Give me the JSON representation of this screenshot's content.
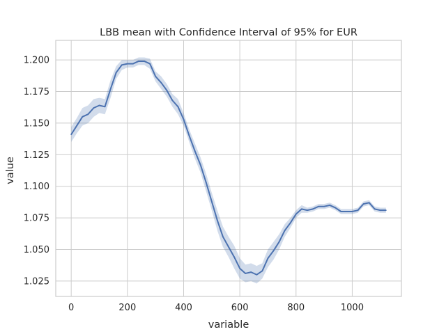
{
  "chart_data": {
    "type": "line",
    "title": "LBB mean with Confidence Interval of 95% for EUR",
    "xlabel": "variable",
    "ylabel": "value",
    "xlim": [
      -55,
      1175
    ],
    "ylim": [
      1.0128,
      1.2155
    ],
    "xticks": [
      0,
      200,
      400,
      600,
      800,
      1000
    ],
    "yticks": [
      1.025,
      1.05,
      1.075,
      1.1,
      1.125,
      1.15,
      1.175,
      1.2
    ],
    "ytick_labels": [
      "1.025",
      "1.050",
      "1.075",
      "1.100",
      "1.125",
      "1.150",
      "1.175",
      "1.200"
    ],
    "grid": true,
    "colors": {
      "line": "#4c72b0",
      "band": "#4c72b0",
      "grid": "#cccccc"
    },
    "series": [
      {
        "x": [
          0,
          20,
          40,
          60,
          80,
          100,
          120,
          140,
          160,
          180,
          200,
          220,
          240,
          260,
          280,
          300,
          320,
          340,
          360,
          380,
          400,
          420,
          440,
          460,
          480,
          500,
          520,
          540,
          560,
          580,
          600,
          620,
          640,
          660,
          680,
          700,
          720,
          740,
          760,
          780,
          800,
          820,
          840,
          860,
          880,
          900,
          920,
          940,
          960,
          980,
          1000,
          1020,
          1040,
          1060,
          1080,
          1100,
          1120
        ],
        "y": [
          1.141,
          1.148,
          1.155,
          1.157,
          1.162,
          1.164,
          1.163,
          1.177,
          1.19,
          1.196,
          1.197,
          1.197,
          1.199,
          1.199,
          1.197,
          1.187,
          1.182,
          1.176,
          1.168,
          1.163,
          1.153,
          1.14,
          1.128,
          1.117,
          1.103,
          1.088,
          1.073,
          1.06,
          1.052,
          1.044,
          1.035,
          1.031,
          1.032,
          1.03,
          1.033,
          1.043,
          1.049,
          1.056,
          1.065,
          1.071,
          1.078,
          1.082,
          1.081,
          1.082,
          1.084,
          1.084,
          1.085,
          1.083,
          1.08,
          1.08,
          1.08,
          1.081,
          1.086,
          1.087,
          1.082,
          1.081,
          1.081
        ],
        "ci_lower": [
          1.135,
          1.142,
          1.148,
          1.15,
          1.155,
          1.158,
          1.157,
          1.17,
          1.185,
          1.192,
          1.194,
          1.194,
          1.196,
          1.196,
          1.193,
          1.183,
          1.177,
          1.171,
          1.163,
          1.157,
          1.148,
          1.135,
          1.122,
          1.111,
          1.096,
          1.081,
          1.065,
          1.052,
          1.044,
          1.035,
          1.027,
          1.024,
          1.025,
          1.023,
          1.027,
          1.036,
          1.042,
          1.05,
          1.06,
          1.067,
          1.075,
          1.079,
          1.079,
          1.08,
          1.082,
          1.082,
          1.083,
          1.081,
          1.078,
          1.078,
          1.078,
          1.079,
          1.084,
          1.085,
          1.08,
          1.079,
          1.079
        ],
        "ci_upper": [
          1.147,
          1.154,
          1.162,
          1.164,
          1.169,
          1.17,
          1.169,
          1.184,
          1.195,
          1.2,
          1.2,
          1.2,
          1.202,
          1.202,
          1.201,
          1.191,
          1.187,
          1.181,
          1.173,
          1.169,
          1.158,
          1.145,
          1.134,
          1.123,
          1.11,
          1.095,
          1.081,
          1.068,
          1.06,
          1.053,
          1.043,
          1.038,
          1.039,
          1.037,
          1.039,
          1.05,
          1.056,
          1.062,
          1.07,
          1.075,
          1.081,
          1.085,
          1.083,
          1.084,
          1.086,
          1.086,
          1.087,
          1.085,
          1.082,
          1.082,
          1.082,
          1.083,
          1.088,
          1.089,
          1.084,
          1.083,
          1.083
        ]
      }
    ]
  }
}
